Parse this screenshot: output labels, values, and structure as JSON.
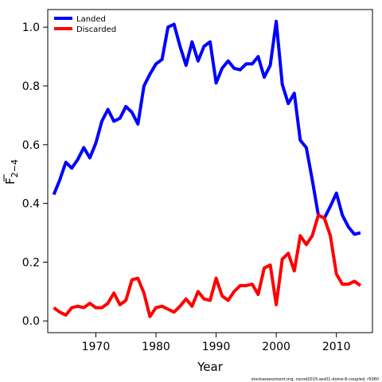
{
  "chart_data": {
    "type": "line",
    "xlabel": "Year",
    "ylabel": "F",
    "ylabel_subscript": "2−4",
    "xlim": [
      1962,
      2016
    ],
    "ylim": [
      -0.04,
      1.06
    ],
    "xticks": [
      1970,
      1980,
      1990,
      2000,
      2010
    ],
    "yticks": [
      0.0,
      0.2,
      0.4,
      0.6,
      0.8,
      1.0
    ],
    "ytick_labels": [
      "0.0",
      "0.2",
      "0.4",
      "0.6",
      "0.8",
      "1.0"
    ],
    "grid": false,
    "legend_position": "top-left",
    "footnote": "stockassessment.org, nscod2015-ass01-dome-6-coupled, r5060",
    "x": [
      1963,
      1964,
      1965,
      1966,
      1967,
      1968,
      1969,
      1970,
      1971,
      1972,
      1973,
      1974,
      1975,
      1976,
      1977,
      1978,
      1979,
      1980,
      1981,
      1982,
      1983,
      1984,
      1985,
      1986,
      1987,
      1988,
      1989,
      1990,
      1991,
      1992,
      1993,
      1994,
      1995,
      1996,
      1997,
      1998,
      1999,
      2000,
      2001,
      2002,
      2003,
      2004,
      2005,
      2006,
      2007,
      2008,
      2009,
      2010,
      2011,
      2012,
      2013,
      2014
    ],
    "series": [
      {
        "name": "Landed",
        "color": "#0000ff",
        "values": [
          0.43,
          0.48,
          0.54,
          0.52,
          0.55,
          0.59,
          0.555,
          0.605,
          0.68,
          0.72,
          0.68,
          0.69,
          0.73,
          0.71,
          0.67,
          0.8,
          0.84,
          0.875,
          0.89,
          1.0,
          1.01,
          0.935,
          0.87,
          0.95,
          0.885,
          0.935,
          0.95,
          0.81,
          0.86,
          0.885,
          0.86,
          0.855,
          0.875,
          0.875,
          0.9,
          0.83,
          0.87,
          1.02,
          0.805,
          0.74,
          0.775,
          0.615,
          0.59,
          0.48,
          0.36,
          0.35,
          0.39,
          0.435,
          0.36,
          0.32,
          0.295,
          0.3
        ]
      },
      {
        "name": "Discarded",
        "color": "#ff0000",
        "values": [
          0.045,
          0.03,
          0.02,
          0.045,
          0.05,
          0.045,
          0.06,
          0.045,
          0.045,
          0.06,
          0.095,
          0.055,
          0.07,
          0.14,
          0.145,
          0.095,
          0.015,
          0.045,
          0.05,
          0.04,
          0.03,
          0.05,
          0.075,
          0.05,
          0.1,
          0.075,
          0.07,
          0.145,
          0.085,
          0.07,
          0.1,
          0.12,
          0.12,
          0.125,
          0.09,
          0.18,
          0.19,
          0.055,
          0.21,
          0.23,
          0.17,
          0.29,
          0.26,
          0.29,
          0.36,
          0.35,
          0.29,
          0.16,
          0.125,
          0.125,
          0.135,
          0.12
        ]
      }
    ]
  }
}
